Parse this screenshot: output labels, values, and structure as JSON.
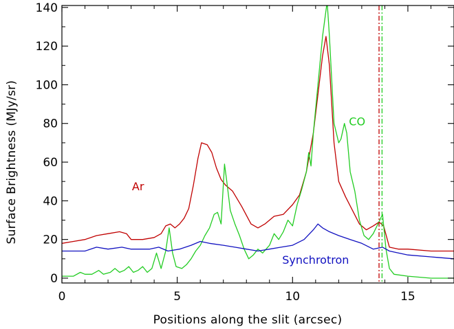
{
  "chart_data": {
    "type": "line",
    "xlabel": "Positions along the slit (arcsec)",
    "ylabel": "Surface Brightness (MJy/sr)",
    "xlim": [
      0,
      17
    ],
    "ylim": [
      -2.5,
      141
    ],
    "xticks": [
      0,
      5,
      10,
      15
    ],
    "yticks": [
      0,
      20,
      40,
      60,
      80,
      100,
      120,
      140
    ],
    "grid": false,
    "series": [
      {
        "name": "Ar",
        "color": "#c00000",
        "x": [
          0,
          0.5,
          1,
          1.5,
          2,
          2.5,
          2.8,
          3.0,
          3.5,
          4.0,
          4.3,
          4.5,
          4.7,
          4.9,
          5.1,
          5.3,
          5.5,
          5.7,
          5.9,
          6.05,
          6.3,
          6.5,
          6.7,
          6.9,
          7.1,
          7.4,
          7.8,
          8.2,
          8.5,
          8.8,
          9.2,
          9.6,
          10.0,
          10.3,
          10.6,
          10.9,
          11.1,
          11.3,
          11.45,
          11.6,
          11.8,
          12.0,
          12.3,
          12.6,
          12.9,
          13.2,
          13.5,
          13.75,
          13.95,
          14.2,
          14.6,
          15.0,
          16.0,
          17.0
        ],
        "y": [
          18,
          19,
          20,
          22,
          23,
          24,
          23,
          20,
          20,
          21,
          23,
          27,
          28,
          26,
          28,
          31,
          36,
          48,
          62,
          70,
          69,
          65,
          57,
          51,
          48,
          45,
          37,
          28,
          26,
          28,
          32,
          33,
          38,
          43,
          55,
          75,
          95,
          115,
          125,
          110,
          70,
          50,
          42,
          35,
          28,
          25,
          27,
          29,
          27,
          16,
          15,
          15,
          14,
          14
        ]
      },
      {
        "name": "CO",
        "color": "#22cc22",
        "x": [
          0,
          0.5,
          0.8,
          1.0,
          1.3,
          1.6,
          1.8,
          2.1,
          2.3,
          2.5,
          2.7,
          2.9,
          3.1,
          3.3,
          3.5,
          3.7,
          3.9,
          4.1,
          4.3,
          4.5,
          4.65,
          4.8,
          4.95,
          5.2,
          5.4,
          5.6,
          5.8,
          6.0,
          6.2,
          6.4,
          6.6,
          6.75,
          6.9,
          7.05,
          7.15,
          7.3,
          7.5,
          7.7,
          7.9,
          8.1,
          8.3,
          8.5,
          8.7,
          9.0,
          9.2,
          9.4,
          9.6,
          9.8,
          10.0,
          10.2,
          10.4,
          10.6,
          10.7,
          10.8,
          10.9,
          11.1,
          11.3,
          11.5,
          11.6,
          11.8,
          12.0,
          12.1,
          12.25,
          12.35,
          12.5,
          12.7,
          12.9,
          13.1,
          13.3,
          13.5,
          13.7,
          13.9,
          14.05,
          14.2,
          14.4,
          15.0,
          16.0,
          17.0
        ],
        "y": [
          1,
          1,
          3,
          2,
          2,
          4,
          2,
          3,
          5,
          3,
          4,
          6,
          3,
          4,
          6,
          3,
          5,
          13,
          5,
          14,
          26,
          13,
          6,
          5,
          7,
          10,
          14,
          17,
          22,
          26,
          33,
          34,
          28,
          59,
          50,
          35,
          28,
          22,
          15,
          10,
          12,
          15,
          13,
          17,
          23,
          20,
          24,
          30,
          27,
          38,
          46,
          55,
          65,
          58,
          75,
          100,
          125,
          143,
          125,
          80,
          70,
          72,
          80,
          75,
          55,
          45,
          30,
          22,
          20,
          23,
          28,
          33,
          15,
          5,
          2,
          1,
          0,
          0
        ]
      },
      {
        "name": "Synchrotron",
        "color": "#1010c0",
        "x": [
          0,
          1,
          1.5,
          2,
          2.6,
          3,
          3.8,
          4.2,
          4.6,
          5.1,
          5.6,
          6.0,
          6.4,
          7.0,
          7.5,
          8.0,
          8.5,
          9.0,
          9.5,
          10.0,
          10.5,
          10.9,
          11.1,
          11.3,
          11.6,
          12.0,
          12.5,
          13.0,
          13.5,
          13.9,
          14.2,
          15.0,
          16.0,
          17.0
        ],
        "y": [
          14,
          14,
          16,
          15,
          16,
          15,
          15,
          16,
          14,
          15,
          17,
          19,
          18,
          17,
          16,
          15,
          14,
          15,
          16,
          17,
          20,
          25,
          28,
          26,
          24,
          22,
          20,
          18,
          15,
          16,
          14,
          12,
          11,
          10
        ]
      }
    ],
    "annotations": [
      {
        "text": "Ar",
        "x": 3.3,
        "y": 45.5,
        "color": "#c00000"
      },
      {
        "text": "CO",
        "x": 12.8,
        "y": 79,
        "color": "#22cc22"
      },
      {
        "text": "Synchrotron",
        "x": 11.0,
        "y": 7.5,
        "color": "#1010c0"
      }
    ],
    "vertical_lines": [
      {
        "x": 13.75,
        "color": "#c00000",
        "style": "dash-dot"
      },
      {
        "x": 13.88,
        "color": "#22cc22",
        "style": "dash-dot"
      }
    ]
  }
}
